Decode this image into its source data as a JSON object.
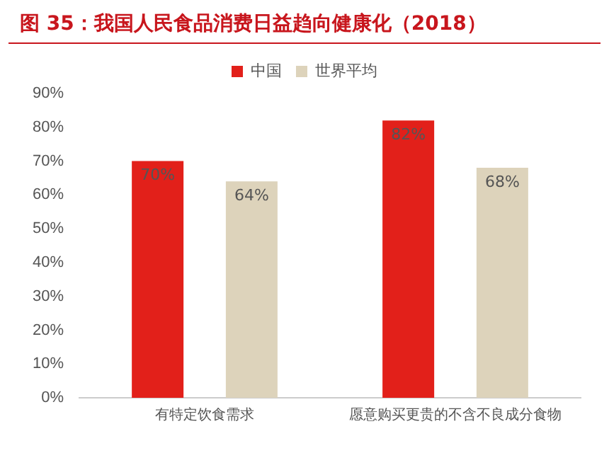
{
  "chart_data": {
    "type": "bar",
    "title": "图 35：我国人民食品消费日益趋向健康化（2018）",
    "categories": [
      "有特定饮食需求",
      "愿意购买更贵的不含不良成分食物"
    ],
    "series": [
      {
        "name": "中国",
        "color": "#e2201a",
        "values": [
          70,
          82
        ],
        "value_labels": [
          "70%",
          "82%"
        ]
      },
      {
        "name": "世界平均",
        "color": "#ddd3bb",
        "values": [
          64,
          68
        ],
        "value_labels": [
          "64%",
          "68%"
        ]
      }
    ],
    "ylim": [
      0,
      90
    ],
    "yticks": [
      {
        "value": 0,
        "label": "0%"
      },
      {
        "value": 10,
        "label": "10%"
      },
      {
        "value": 20,
        "label": "20%"
      },
      {
        "value": 30,
        "label": "30%"
      },
      {
        "value": 40,
        "label": "40%"
      },
      {
        "value": 50,
        "label": "50%"
      },
      {
        "value": 60,
        "label": "60%"
      },
      {
        "value": 70,
        "label": "70%"
      },
      {
        "value": 80,
        "label": "80%"
      },
      {
        "value": 90,
        "label": "90%"
      }
    ],
    "grid": false,
    "legend": "top"
  }
}
